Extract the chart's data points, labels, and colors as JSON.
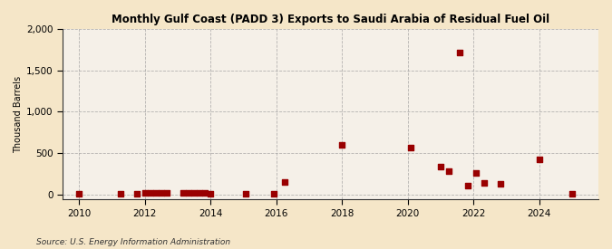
{
  "title": "Monthly Gulf Coast (PADD 3) Exports to Saudi Arabia of Residual Fuel Oil",
  "ylabel": "Thousand Barrels",
  "source": "Source: U.S. Energy Information Administration",
  "background_color": "#f5e6c8",
  "plot_background_color": "#f5f0e8",
  "marker_color": "#990000",
  "marker_size": 16,
  "xlim": [
    2009.5,
    2025.8
  ],
  "ylim": [
    -60,
    2000
  ],
  "yticks": [
    0,
    500,
    1000,
    1500,
    2000
  ],
  "xticks": [
    2010,
    2012,
    2014,
    2016,
    2018,
    2020,
    2022,
    2024
  ],
  "data_x": [
    2010.0,
    2011.25,
    2011.75,
    2012.0,
    2012.17,
    2012.33,
    2012.5,
    2012.67,
    2013.17,
    2013.33,
    2013.5,
    2013.67,
    2013.83,
    2014.0,
    2015.08,
    2015.92,
    2016.25,
    2018.0,
    2020.08,
    2021.0,
    2021.25,
    2021.58,
    2021.83,
    2022.08,
    2022.33,
    2022.83,
    2024.0,
    2025.0
  ],
  "data_y": [
    5,
    10,
    12,
    15,
    20,
    25,
    22,
    18,
    15,
    20,
    22,
    25,
    18,
    10,
    5,
    5,
    155,
    600,
    570,
    335,
    285,
    1720,
    110,
    260,
    145,
    135,
    420,
    10
  ]
}
